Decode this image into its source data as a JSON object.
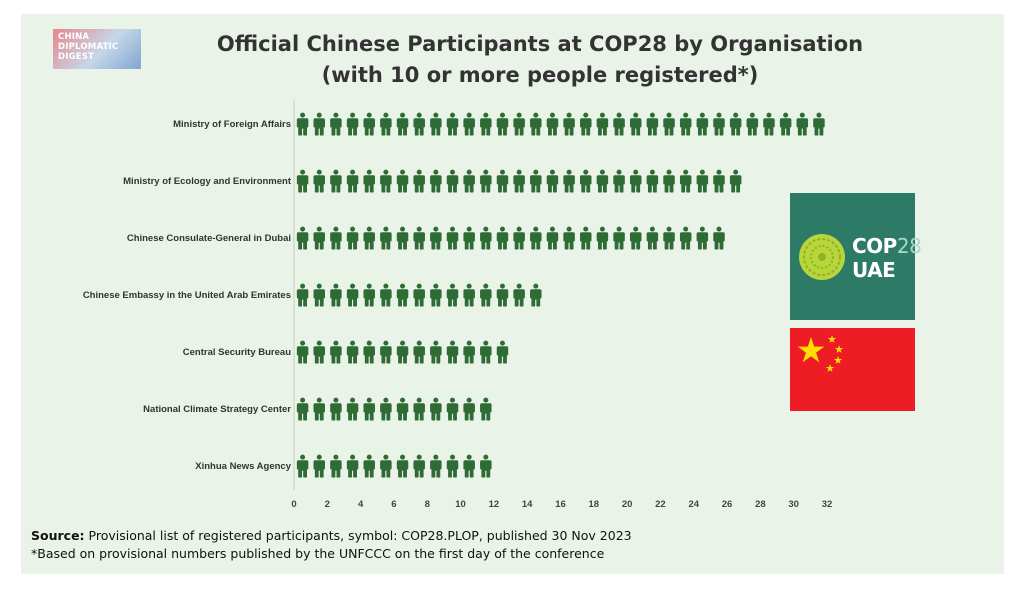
{
  "logo": {
    "lines": [
      "CHINA",
      "DIPLOMATIC",
      "DIGEST"
    ]
  },
  "chart_data": {
    "type": "bar",
    "title_line1": "Official Chinese Participants at COP28 by Organisation",
    "title_line2": "(with 10 or more people registered*)",
    "categories": [
      "Ministry of Foreign Affairs",
      "Ministry of Ecology and Environment",
      "Chinese Consulate-General in Dubai",
      "Chinese Embassy in the United Arab Emirates",
      "Central Security Bureau",
      "National Climate Strategy Center",
      "Xinhua News Agency"
    ],
    "values": [
      32,
      27,
      26,
      15,
      13,
      12,
      12
    ],
    "xlim": [
      0,
      32
    ],
    "xticks": [
      "0",
      "2",
      "4",
      "6",
      "8",
      "10",
      "12",
      "14",
      "16",
      "18",
      "20",
      "22",
      "24",
      "26",
      "28",
      "30",
      "32"
    ],
    "orientation": "horizontal",
    "mark": "person-icon",
    "mark_color": "#2e6b35"
  },
  "cop28_logo": {
    "line1_prefix": "COP",
    "line1_number": "28",
    "line2": "UAE",
    "background": "#2d7a67"
  },
  "flag": {
    "name": "china-flag",
    "background": "#ee1c25",
    "star_color": "#ffde00"
  },
  "footer": {
    "source_label": "Source:",
    "source_text": " Provisional list of registered participants, symbol: COP28.PLOP, published 30 Nov 2023",
    "note": "*Based on provisional numbers published by the UNFCCC on the first day of the conference"
  }
}
